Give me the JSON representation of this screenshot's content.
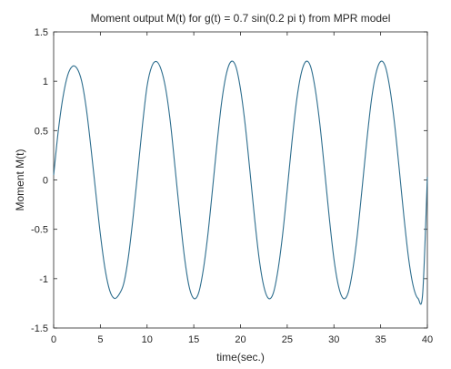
{
  "chart_data": {
    "type": "line",
    "title": "Moment output M(t)  for  g(t) = 0.7 sin(0.2 pi t) from MPR model",
    "xlabel": "time(sec.)",
    "ylabel": "Moment  M(t)",
    "xlim": [
      0,
      40
    ],
    "ylim": [
      -1.5,
      1.5
    ],
    "x_ticks": [
      0,
      5,
      10,
      15,
      20,
      25,
      30,
      35,
      40
    ],
    "x_tick_labels": [
      "0",
      "5",
      "10",
      "15",
      "20",
      "25",
      "30",
      "35",
      "40"
    ],
    "y_ticks": [
      -1.5,
      -1,
      -0.5,
      0,
      0.5,
      1,
      1.5
    ],
    "y_tick_labels": [
      "-1.5",
      "-1",
      "-0.5",
      "0",
      "0.5",
      "1",
      "1.5"
    ],
    "grid": false,
    "series": [
      {
        "color": "#2e6e8e",
        "x": [
          0,
          0.5,
          1,
          1.5,
          2,
          2.5,
          3,
          3.5,
          4,
          4.5,
          5,
          5.5,
          6,
          6.5,
          7,
          7.5,
          8,
          8.5,
          9,
          9.5,
          10,
          10.5,
          11,
          11.5,
          12,
          12.5,
          13,
          13.5,
          14,
          14.5,
          15,
          15.5,
          16,
          16.5,
          17,
          17.5,
          18,
          18.5,
          19,
          19.5,
          20,
          20.5,
          21,
          21.5,
          22,
          22.5,
          23,
          23.5,
          24,
          24.5,
          25,
          25.5,
          26,
          26.5,
          27,
          27.5,
          28,
          28.5,
          29,
          29.5,
          30,
          30.5,
          31,
          31.5,
          32,
          32.5,
          33,
          33.5,
          34,
          34.5,
          35,
          35.5,
          36,
          36.5,
          37,
          37.5,
          38,
          38.5,
          39,
          39.5,
          40
        ],
        "values": [
          0.05,
          0.5,
          0.84,
          1.06,
          1.15,
          1.13,
          1.0,
          0.72,
          0.32,
          -0.12,
          -0.55,
          -0.9,
          -1.12,
          -1.2,
          -1.16,
          -1.05,
          -0.78,
          -0.38,
          0.08,
          0.55,
          0.95,
          1.15,
          1.2,
          1.12,
          0.92,
          0.58,
          0.12,
          -0.35,
          -0.78,
          -1.08,
          -1.2,
          -1.15,
          -0.92,
          -0.56,
          -0.1,
          0.38,
          0.8,
          1.08,
          1.2,
          1.15,
          0.92,
          0.56,
          0.1,
          -0.38,
          -0.8,
          -1.08,
          -1.2,
          -1.15,
          -0.92,
          -0.56,
          -0.1,
          0.38,
          0.8,
          1.08,
          1.2,
          1.15,
          0.92,
          0.56,
          0.1,
          -0.38,
          -0.8,
          -1.08,
          -1.2,
          -1.15,
          -0.92,
          -0.56,
          -0.1,
          0.38,
          0.8,
          1.08,
          1.2,
          1.15,
          0.92,
          0.56,
          0.1,
          -0.38,
          -0.8,
          -1.08,
          -1.2,
          -1.15,
          0.03
        ]
      }
    ]
  }
}
